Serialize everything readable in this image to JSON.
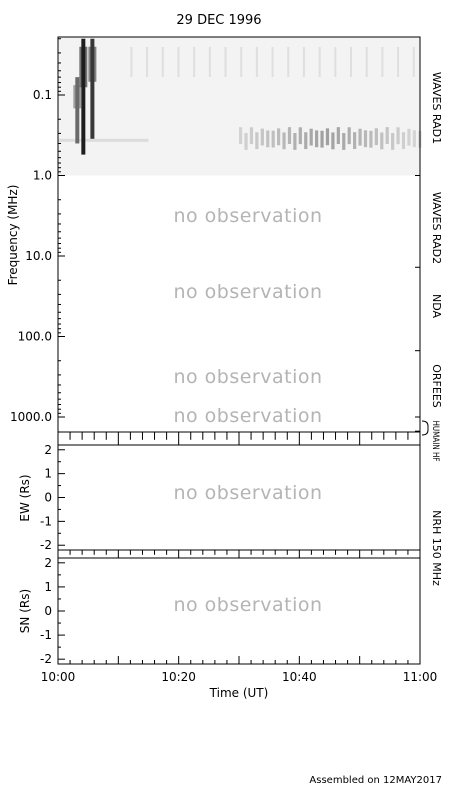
{
  "page": {
    "title": "29 DEC 1996",
    "footer": "Assembled on 12MAY2017"
  },
  "chart_data": [
    {
      "type": "heatmap",
      "panel": "radio-spectrogram",
      "title": "29 DEC 1996",
      "ylabel": "Frequency (MHz)",
      "y_scale": "log",
      "y_inverted": true,
      "ylim": [
        0.02,
        1500
      ],
      "yticks": [
        0.1,
        1.0,
        10.0,
        100.0,
        1000.0
      ],
      "ytick_labels": [
        "0.1",
        "1.0",
        "10.0",
        "100.0",
        "1000.0"
      ],
      "xlim": [
        "10:00",
        "11:00"
      ],
      "instruments": [
        {
          "name": "WAVES RAD1",
          "range_mhz": [
            0.02,
            1.0
          ],
          "observed": true
        },
        {
          "name": "WAVES RAD2",
          "range_mhz": [
            1.0,
            13.8
          ],
          "observed": false
        },
        {
          "name": "NDA",
          "range_mhz": [
            13.8,
            150
          ],
          "observed": false
        },
        {
          "name": "ORFEES",
          "range_mhz": [
            150,
            1000
          ],
          "observed": false
        },
        {
          "name": "HUMAIN HF",
          "range_mhz": [
            1000,
            1500
          ],
          "observed": false
        }
      ],
      "no_observation_text": [
        "no observation",
        "no observation",
        "no observation",
        "no observation"
      ],
      "bursts": [
        {
          "time_min": 4.2,
          "freq_mhz_top": 0.02,
          "freq_mhz_bottom": 0.55,
          "intensity": 1.0
        },
        {
          "time_min": 5.7,
          "freq_mhz_top": 0.02,
          "freq_mhz_bottom": 0.35,
          "intensity": 0.85
        },
        {
          "time_min": 3.2,
          "freq_mhz_top": 0.06,
          "freq_mhz_bottom": 0.4,
          "intensity": 0.55
        }
      ],
      "band_emission": {
        "freq_mhz_range": [
          0.25,
          0.6
        ],
        "time_min_range": [
          30,
          60
        ],
        "peak_time_min": 44,
        "intensity": 0.55
      }
    },
    {
      "type": "line",
      "panel": "ew",
      "ylabel": "EW (Rs)",
      "ylim": [
        -2.2,
        2.2
      ],
      "yticks": [
        -2,
        -1,
        0,
        1,
        2
      ],
      "ytick_labels": [
        "-2",
        "-1",
        "0",
        "1",
        "2"
      ],
      "instrument": "NRH 150 MHz",
      "no_observation_text": "no observation"
    },
    {
      "type": "line",
      "panel": "sn",
      "ylabel": "SN (Rs)",
      "ylim": [
        -2.2,
        2.2
      ],
      "yticks": [
        -2,
        -1,
        0,
        1,
        2
      ],
      "ytick_labels": [
        "-2",
        "-1",
        "0",
        "1",
        "2"
      ],
      "no_observation_text": "no observation",
      "xlabel": "Time (UT)",
      "xticks_min": [
        0,
        20,
        40,
        60
      ],
      "xtick_labels": [
        "10:00",
        "10:20",
        "10:40",
        "11:00"
      ]
    }
  ]
}
